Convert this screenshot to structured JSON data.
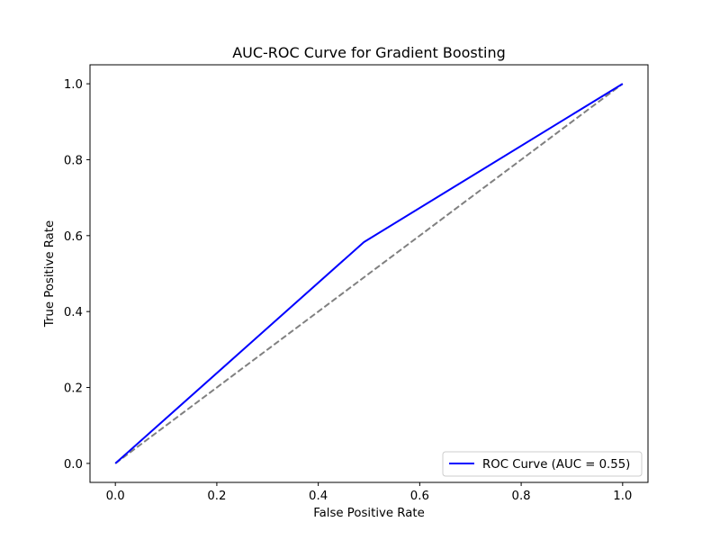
{
  "chart_data": {
    "type": "line",
    "title": "AUC-ROC Curve for Gradient Boosting",
    "xlabel": "False Positive Rate",
    "ylabel": "True Positive Rate",
    "xlim": [
      -0.05,
      1.05
    ],
    "ylim": [
      -0.05,
      1.05
    ],
    "xticks": [
      0.0,
      0.2,
      0.4,
      0.6,
      0.8,
      1.0
    ],
    "yticks": [
      0.0,
      0.2,
      0.4,
      0.6,
      0.8,
      1.0
    ],
    "xtick_labels": [
      "0.0",
      "0.2",
      "0.4",
      "0.6",
      "0.8",
      "1.0"
    ],
    "ytick_labels": [
      "0.0",
      "0.2",
      "0.4",
      "0.6",
      "0.8",
      "1.0"
    ],
    "grid": false,
    "legend_position": "lower-right",
    "series": [
      {
        "name": "ROC Curve (AUC = 0.55)",
        "color": "#0000ff",
        "style": "solid",
        "x": [
          0.0,
          0.49,
          1.0
        ],
        "y": [
          0.0,
          0.583,
          1.0
        ]
      },
      {
        "color": "#808080",
        "style": "dashed",
        "x": [
          0.0,
          1.0
        ],
        "y": [
          0.0,
          1.0
        ]
      }
    ]
  }
}
